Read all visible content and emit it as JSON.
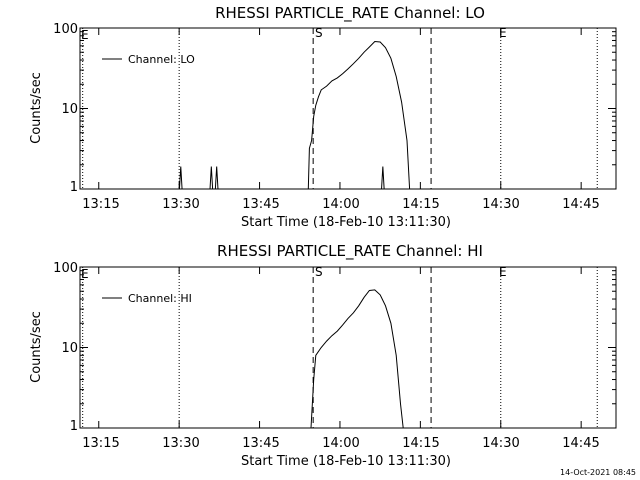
{
  "timestamp": "14-Oct-2021 08:45",
  "chart_data": [
    {
      "type": "line",
      "title": "RHESSI PARTICLE_RATE Channel: LO",
      "legend": "Channel: LO",
      "ylabel": "Counts/sec",
      "xlabel": "Start Time (18-Feb-10 13:11:30)",
      "x_unit": "minutes since 13:11:30",
      "xlim": [
        0,
        100
      ],
      "ylim": [
        1,
        100
      ],
      "yscale": "log",
      "x_ticks": [
        3.5,
        18.5,
        33.5,
        48.5,
        63.5,
        78.5,
        93.5
      ],
      "x_tick_labels": [
        "13:15",
        "13:30",
        "13:45",
        "14:00",
        "14:15",
        "14:30",
        "14:45"
      ],
      "y_ticks": [
        1,
        10,
        100
      ],
      "y_tick_labels": [
        "1",
        "10",
        "100"
      ],
      "markers": [
        {
          "label": "E",
          "x": 0.5,
          "style": "dotted"
        },
        {
          "label": "",
          "x": 18.5,
          "style": "dotted"
        },
        {
          "label": "S",
          "x": 43.5,
          "style": "dashed"
        },
        {
          "label": "",
          "x": 65.5,
          "style": "dashed"
        },
        {
          "label": "E",
          "x": 78.5,
          "style": "dotted"
        },
        {
          "label": "",
          "x": 96.5,
          "style": "dotted"
        }
      ],
      "spikes": [
        [
          18.8,
          1.9
        ],
        [
          24.5,
          1.9
        ],
        [
          25.5,
          1.9
        ],
        [
          56.5,
          1.9
        ]
      ],
      "series": [
        {
          "name": "Channel: LO",
          "points": [
            [
              42.6,
              1
            ],
            [
              42.8,
              3.2
            ],
            [
              43.2,
              4
            ],
            [
              43.6,
              8
            ],
            [
              44,
              11
            ],
            [
              44.5,
              14
            ],
            [
              45,
              17
            ],
            [
              46,
              19
            ],
            [
              47,
              22
            ],
            [
              48,
              24
            ],
            [
              49,
              27
            ],
            [
              50,
              31
            ],
            [
              51,
              36
            ],
            [
              52,
              42
            ],
            [
              53,
              50
            ],
            [
              54,
              58
            ],
            [
              55,
              68
            ],
            [
              56,
              67
            ],
            [
              57,
              57
            ],
            [
              58,
              42
            ],
            [
              59,
              25
            ],
            [
              60,
              12
            ],
            [
              61,
              4
            ],
            [
              61.5,
              1
            ]
          ]
        }
      ]
    },
    {
      "type": "line",
      "title": "RHESSI PARTICLE_RATE Channel: HI",
      "legend": "Channel: HI",
      "ylabel": "Counts/sec",
      "xlabel": "Start Time (18-Feb-10 13:11:30)",
      "x_unit": "minutes since 13:11:30",
      "xlim": [
        0,
        100
      ],
      "ylim": [
        1,
        100
      ],
      "yscale": "log",
      "x_ticks": [
        3.5,
        18.5,
        33.5,
        48.5,
        63.5,
        78.5,
        93.5
      ],
      "x_tick_labels": [
        "13:15",
        "13:30",
        "13:45",
        "14:00",
        "14:15",
        "14:30",
        "14:45"
      ],
      "y_ticks": [
        1,
        10,
        100
      ],
      "y_tick_labels": [
        "1",
        "10",
        "100"
      ],
      "markers": [
        {
          "label": "E",
          "x": 0.5,
          "style": "dotted"
        },
        {
          "label": "",
          "x": 18.5,
          "style": "dotted"
        },
        {
          "label": "S",
          "x": 43.5,
          "style": "dashed"
        },
        {
          "label": "",
          "x": 65.5,
          "style": "dashed"
        },
        {
          "label": "E",
          "x": 78.5,
          "style": "dotted"
        },
        {
          "label": "",
          "x": 96.5,
          "style": "dotted"
        }
      ],
      "spikes": [],
      "series": [
        {
          "name": "Channel: HI",
          "points": [
            [
              43.1,
              1
            ],
            [
              43.6,
              4
            ],
            [
              44,
              8
            ],
            [
              45,
              10
            ],
            [
              46,
              12
            ],
            [
              47,
              14
            ],
            [
              48,
              16
            ],
            [
              49,
              19
            ],
            [
              50,
              23
            ],
            [
              51,
              27
            ],
            [
              52,
              33
            ],
            [
              53,
              42
            ],
            [
              54,
              51
            ],
            [
              55,
              52
            ],
            [
              56,
              45
            ],
            [
              57,
              33
            ],
            [
              58,
              20
            ],
            [
              59,
              8
            ],
            [
              59.8,
              2
            ],
            [
              60.3,
              1
            ]
          ]
        }
      ]
    }
  ]
}
